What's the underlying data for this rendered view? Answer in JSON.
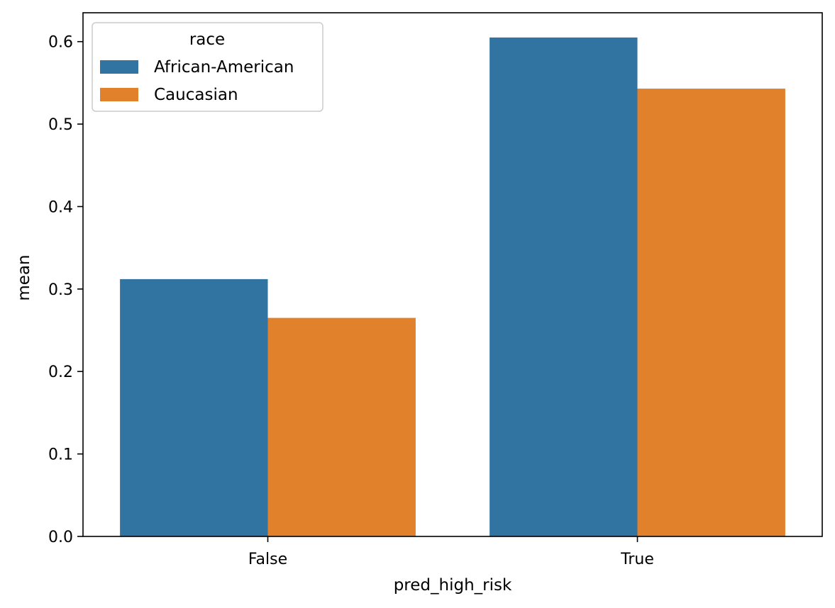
{
  "chart_data": {
    "type": "bar",
    "categories": [
      "False",
      "True"
    ],
    "series": [
      {
        "name": "African-American",
        "color": "#3274a1",
        "values": [
          0.312,
          0.605
        ]
      },
      {
        "name": "Caucasian",
        "color": "#e1812c",
        "values": [
          0.265,
          0.543
        ]
      }
    ],
    "xlabel": "pred_high_risk",
    "ylabel": "mean",
    "ylim": [
      0,
      0.635
    ],
    "yticks": [
      0.0,
      0.1,
      0.2,
      0.3,
      0.4,
      0.5,
      0.6
    ],
    "ytick_labels": [
      "0.0",
      "0.1",
      "0.2",
      "0.3",
      "0.4",
      "0.5",
      "0.6"
    ],
    "legend": {
      "title": "race",
      "placement": "top-left"
    },
    "grid": false
  }
}
